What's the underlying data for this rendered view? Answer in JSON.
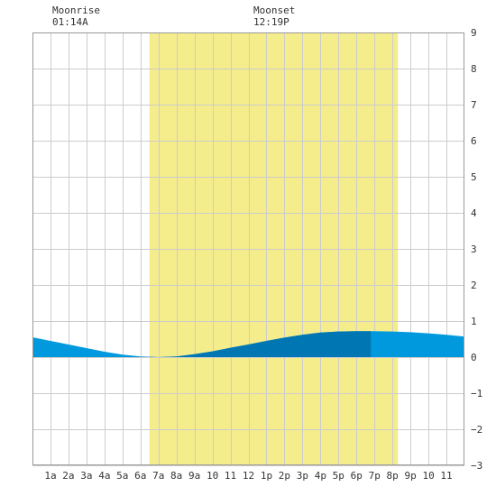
{
  "moon_events": [
    {
      "label": "Moonrise",
      "time": "01:14A",
      "hour": 1.233
    },
    {
      "label": "Moonset",
      "time": "12:19P",
      "hour": 12.317
    }
  ],
  "chart_data": {
    "type": "area",
    "title": "",
    "xlabel": "",
    "ylabel": "",
    "x_tick_labels": [
      "1a",
      "2a",
      "3a",
      "4a",
      "5a",
      "6a",
      "7a",
      "8a",
      "9a",
      "10",
      "11",
      "12",
      "1p",
      "2p",
      "3p",
      "4p",
      "5p",
      "6p",
      "7p",
      "8p",
      "9p",
      "10",
      "11"
    ],
    "xlim": [
      0,
      24
    ],
    "ylim": [
      -3,
      9
    ],
    "y_ticks": [
      -3,
      -2,
      -1,
      0,
      1,
      2,
      3,
      4,
      5,
      6,
      7,
      8,
      9
    ],
    "grid": true,
    "daylight": {
      "start_hour": 6.5,
      "end_hour": 20.3,
      "color": "#f5ec8c"
    },
    "highlight_band": {
      "start_hour": 6.5,
      "end_hour": 18.8
    },
    "colors": {
      "water": "#0099dd",
      "water_dark": "#0077b3",
      "grid": "#cccccc",
      "frame": "#999999"
    },
    "series": [
      {
        "hours": [
          0,
          1,
          2,
          3,
          4,
          5,
          6,
          7,
          8,
          9,
          10,
          11,
          12,
          13,
          14,
          15,
          16,
          17,
          18,
          19,
          20,
          21,
          22,
          23,
          24
        ],
        "values": [
          0.55,
          0.45,
          0.35,
          0.25,
          0.15,
          0.07,
          0.02,
          0.0,
          0.02,
          0.08,
          0.16,
          0.26,
          0.35,
          0.45,
          0.54,
          0.62,
          0.68,
          0.71,
          0.72,
          0.72,
          0.71,
          0.69,
          0.66,
          0.62,
          0.57
        ]
      }
    ]
  }
}
